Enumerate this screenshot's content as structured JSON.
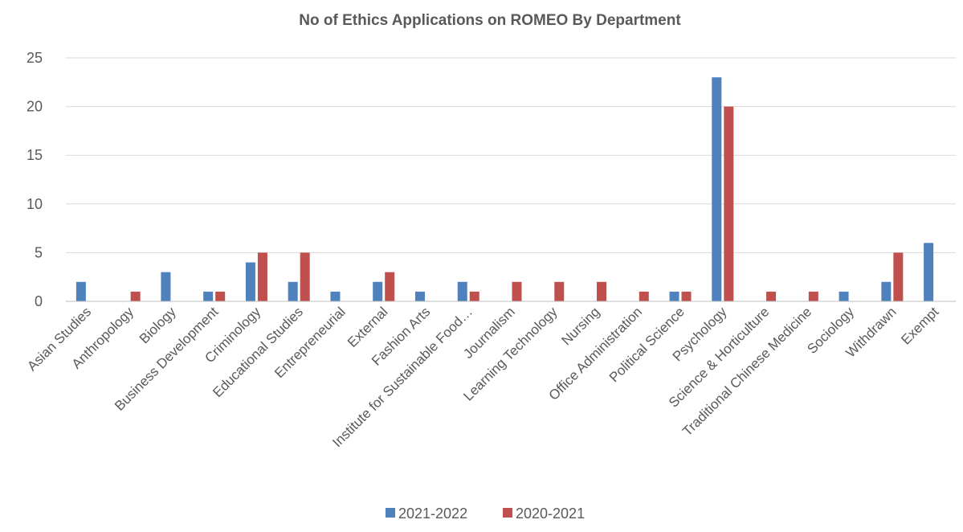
{
  "chart_data": {
    "type": "bar",
    "title": "No of Ethics Applications on ROMEO By Department",
    "xlabel": "",
    "ylabel": "",
    "ylim": [
      0,
      25
    ],
    "yticks": [
      0,
      5,
      10,
      15,
      20,
      25
    ],
    "grid": true,
    "legend_position": "bottom",
    "categories": [
      "Asian Studies",
      "Anthropology",
      "Biology",
      "Business Development",
      "Criminology",
      "Educational Studies",
      "Entrepreneurial",
      "External",
      "Fashion Arts",
      "Institute for Sustainable Food…",
      "Journalism",
      "Learning Technology",
      "Nursing",
      "Office Administration",
      "Political Science",
      "Psychology",
      "Science & Horticulture",
      "Traditional Chinese Medicine",
      "Sociology",
      "Withdrawn",
      "Exempt"
    ],
    "series": [
      {
        "name": "2021-2022",
        "color": "#4f81bd",
        "values": [
          2,
          0,
          3,
          1,
          4,
          2,
          1,
          2,
          1,
          2,
          0,
          0,
          0,
          0,
          1,
          23,
          0,
          0,
          1,
          2,
          6
        ]
      },
      {
        "name": "2020-2021",
        "color": "#c0504d",
        "values": [
          0,
          1,
          0,
          1,
          5,
          5,
          0,
          3,
          0,
          1,
          2,
          2,
          2,
          1,
          1,
          20,
          1,
          1,
          0,
          5,
          0
        ]
      }
    ]
  }
}
